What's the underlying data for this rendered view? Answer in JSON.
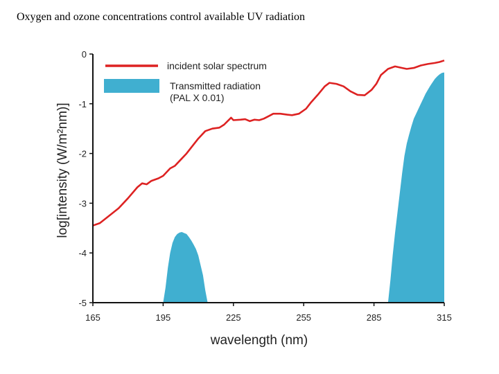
{
  "slide": {
    "title": "Oxygen and ozone concentrations control available UV radiation"
  },
  "chart_data": {
    "type": "line",
    "title": "",
    "xlabel": "wavelength (nm)",
    "ylabel": "log[intensity (W/m²nm)]",
    "xlim": [
      165,
      315
    ],
    "ylim": [
      -5,
      0
    ],
    "xticks": [
      165,
      195,
      225,
      255,
      285,
      315
    ],
    "yticks": [
      0,
      -1,
      -2,
      -3,
      -4,
      -5
    ],
    "grid": false,
    "legend_position": "top-left",
    "series": [
      {
        "name": "incident solar spectrum",
        "kind": "line",
        "color": "#dd2222",
        "x": [
          165,
          168,
          172,
          176,
          180,
          184,
          186,
          188,
          190,
          193,
          195,
          198,
          200,
          203,
          205,
          208,
          210,
          213,
          216,
          219,
          221,
          224,
          225,
          228,
          230,
          232,
          234,
          236,
          238,
          240,
          242,
          245,
          248,
          250,
          253,
          256,
          258,
          261,
          264,
          266,
          269,
          272,
          275,
          278,
          281,
          284,
          286,
          288,
          291,
          294,
          297,
          299,
          302,
          305,
          308,
          311,
          313,
          315
        ],
        "y": [
          -3.45,
          -3.4,
          -3.25,
          -3.1,
          -2.9,
          -2.68,
          -2.6,
          -2.62,
          -2.55,
          -2.5,
          -2.45,
          -2.3,
          -2.25,
          -2.1,
          -2.0,
          -1.82,
          -1.7,
          -1.55,
          -1.5,
          -1.48,
          -1.42,
          -1.28,
          -1.33,
          -1.32,
          -1.31,
          -1.35,
          -1.32,
          -1.33,
          -1.3,
          -1.25,
          -1.2,
          -1.2,
          -1.22,
          -1.23,
          -1.2,
          -1.1,
          -0.98,
          -0.82,
          -0.65,
          -0.58,
          -0.6,
          -0.65,
          -0.75,
          -0.82,
          -0.83,
          -0.72,
          -0.6,
          -0.42,
          -0.3,
          -0.25,
          -0.28,
          -0.3,
          -0.28,
          -0.23,
          -0.2,
          -0.18,
          -0.16,
          -0.13
        ]
      },
      {
        "name": "Transmitted radiation",
        "name_line2": "(PAL X 0.01)",
        "kind": "area",
        "color": "#40afd0",
        "segments": [
          {
            "x": [
              195,
              196,
              197,
              198,
              199,
              200,
              201,
              202,
              203,
              204,
              205,
              206,
              207,
              208,
              209,
              210,
              211,
              212,
              213,
              214
            ],
            "y": [
              -5.0,
              -4.7,
              -4.3,
              -4.0,
              -3.8,
              -3.68,
              -3.62,
              -3.59,
              -3.58,
              -3.6,
              -3.62,
              -3.68,
              -3.75,
              -3.83,
              -3.92,
              -4.05,
              -4.25,
              -4.45,
              -4.75,
              -5.0
            ]
          },
          {
            "x": [
              291,
              292,
              293,
              294,
              295,
              296,
              297,
              298,
              299,
              300,
              301,
              302,
              303,
              304,
              305,
              306,
              307,
              308,
              309,
              310,
              311,
              312,
              313,
              314,
              315
            ],
            "y": [
              -5.0,
              -4.55,
              -4.05,
              -3.6,
              -3.2,
              -2.8,
              -2.4,
              -2.05,
              -1.8,
              -1.62,
              -1.45,
              -1.3,
              -1.2,
              -1.1,
              -1.0,
              -0.9,
              -0.8,
              -0.72,
              -0.64,
              -0.57,
              -0.5,
              -0.45,
              -0.41,
              -0.38,
              -0.37
            ]
          }
        ]
      }
    ]
  }
}
